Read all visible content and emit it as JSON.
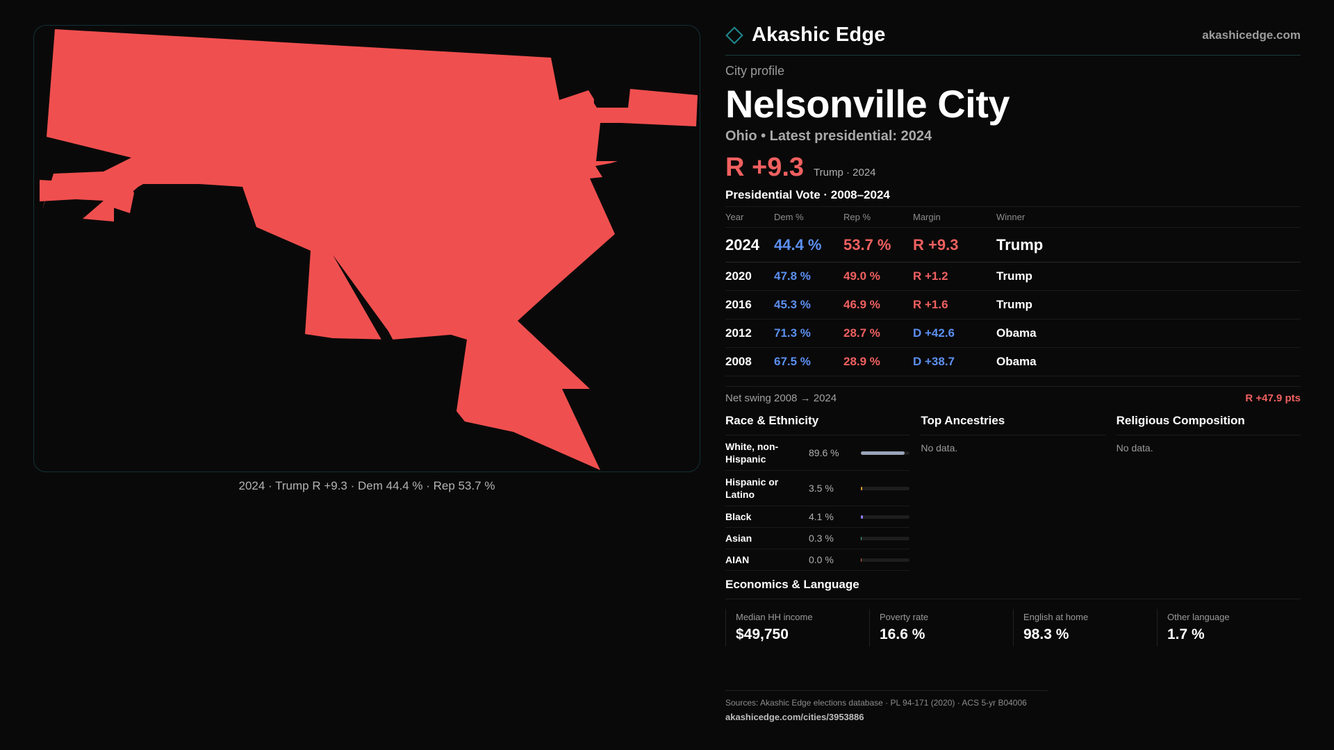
{
  "map": {
    "fill_color": "#f04f4f",
    "caption": "2024 · Trump R +9.3 · Dem 44.4 % · Rep 53.7 %"
  },
  "brand": {
    "name": "Akashic Edge",
    "url": "akashicedge.com",
    "mark_icon": "diamond-icon",
    "mark_color": "#1f8a91"
  },
  "profile": {
    "kicker": "City profile",
    "title": "Nelsonville City",
    "subline": "Ohio • Latest presidential: 2024",
    "hero_margin": "R +9.3",
    "hero_sub": "Trump · 2024"
  },
  "votes": {
    "title": "Presidential Vote · 2008–2024",
    "headers": {
      "year": "Year",
      "dem": "Dem %",
      "rep": "Rep %",
      "margin": "Margin",
      "winner": "Winner"
    },
    "rows": [
      {
        "year": "2024",
        "dem": "44.4 %",
        "rep": "53.7 %",
        "margin": "R +9.3",
        "winner": "Trump"
      },
      {
        "year": "2020",
        "dem": "47.8 %",
        "rep": "49.0 %",
        "margin": "R +1.2",
        "winner": "Trump"
      },
      {
        "year": "2016",
        "dem": "45.3 %",
        "rep": "46.9 %",
        "margin": "R +1.6",
        "winner": "Trump"
      },
      {
        "year": "2012",
        "dem": "71.3 %",
        "rep": "28.7 %",
        "margin": "D +42.6",
        "winner": "Obama"
      },
      {
        "year": "2008",
        "dem": "67.5 %",
        "rep": "28.9 %",
        "margin": "D +38.7",
        "winner": "Obama"
      }
    ],
    "colors": {
      "dem": "#5b8ff0",
      "rep": "#f06060"
    }
  },
  "swing": {
    "label": "Net swing 2008 → 2024",
    "value": "R +47.9 pts"
  },
  "race": {
    "title": "Race & Ethnicity",
    "rows": [
      {
        "label": "White, non-Hispanic",
        "value": "89.6 %",
        "pct": 89.6,
        "color": "#9aa4b8"
      },
      {
        "label": "Hispanic or Latino",
        "value": "3.5 %",
        "pct": 3.5,
        "color": "#e0a030"
      },
      {
        "label": "Black",
        "value": "4.1 %",
        "pct": 4.1,
        "color": "#8a7ef0"
      },
      {
        "label": "Asian",
        "value": "0.3 %",
        "pct": 0.3,
        "color": "#40b0a0"
      },
      {
        "label": "AIAN",
        "value": "0.0 %",
        "pct": 0.0,
        "color": "#c07050"
      }
    ]
  },
  "ancestries": {
    "title": "Top Ancestries",
    "empty": "No data."
  },
  "religion": {
    "title": "Religious Composition",
    "empty": "No data."
  },
  "economics": {
    "title": "Economics & Language",
    "items": [
      {
        "label": "Median HH income",
        "value": "$49,750"
      },
      {
        "label": "Poverty rate",
        "value": "16.6 %"
      },
      {
        "label": "English at home",
        "value": "98.3 %"
      },
      {
        "label": "Other language",
        "value": "1.7 %"
      }
    ]
  },
  "footer": {
    "sources": "Sources: Akashic Edge elections database · PL 94-171 (2020) · ACS 5-yr B04006",
    "permalink": "akashicedge.com/cities/3953886"
  }
}
